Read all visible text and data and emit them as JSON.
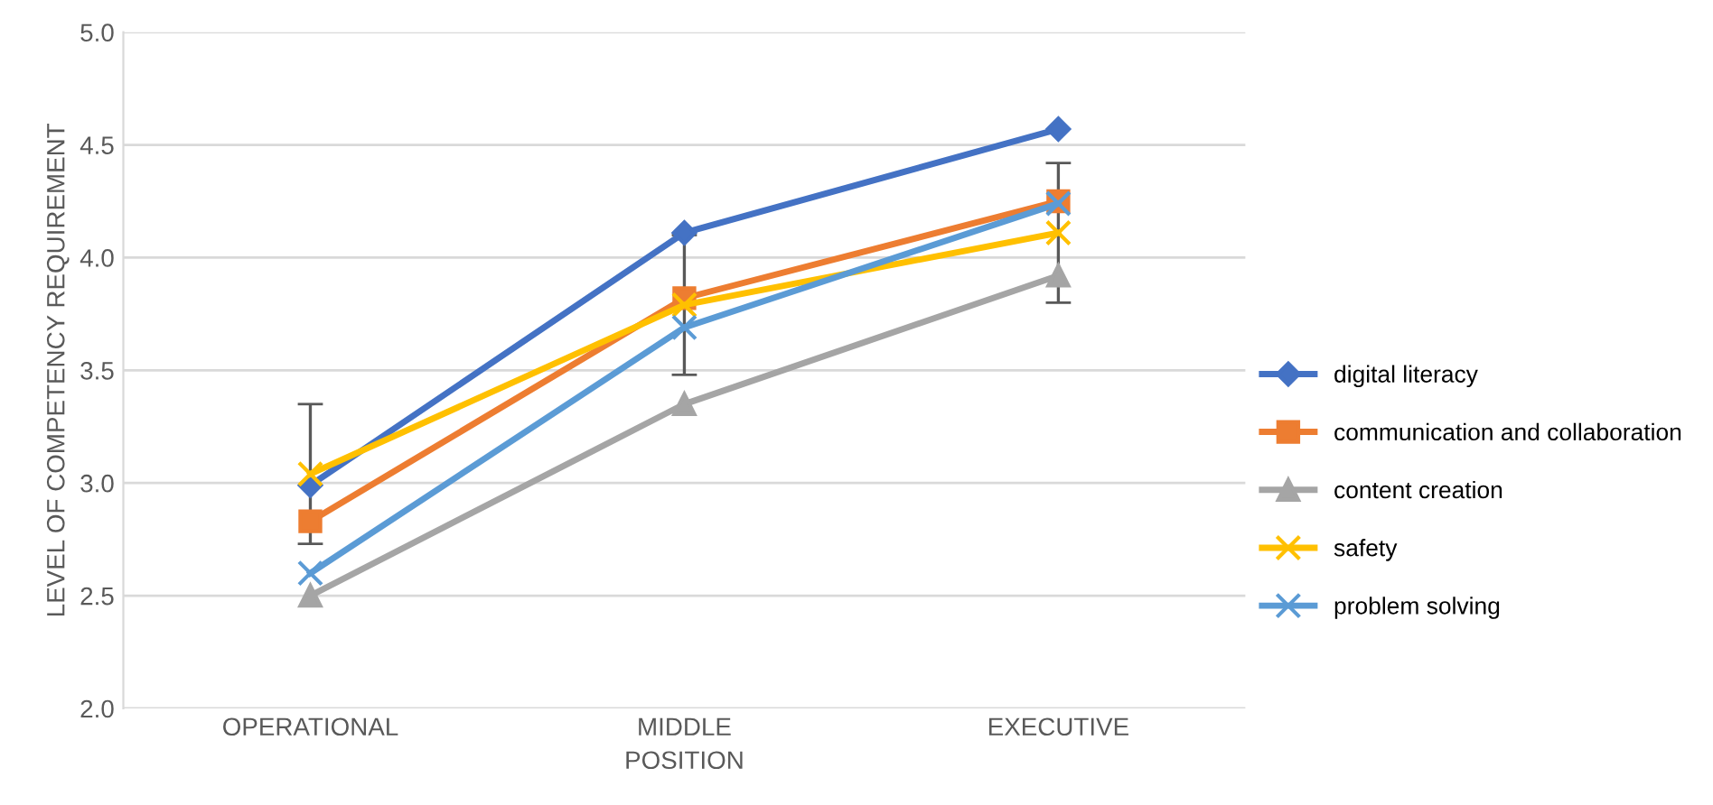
{
  "chart_data": {
    "type": "line",
    "xlabel": "POSITION",
    "ylabel": "LEVEL OF COMPETENCY REQUIREMENT",
    "categories": [
      "OPERATIONAL",
      "MIDDLE",
      "EXECUTIVE"
    ],
    "series": [
      {
        "name": "digital literacy",
        "color": "#4472c4",
        "marker": "diamond",
        "values": [
          2.99,
          4.11,
          4.57
        ]
      },
      {
        "name": "communication and collaboration",
        "color": "#ed7d31",
        "marker": "square",
        "values": [
          2.83,
          3.82,
          4.25
        ]
      },
      {
        "name": "content creation",
        "color": "#a5a5a5",
        "marker": "triangle",
        "values": [
          2.5,
          3.35,
          3.92
        ]
      },
      {
        "name": "safety",
        "color": "#ffc000",
        "marker": "cross",
        "values": [
          3.04,
          3.79,
          4.11
        ],
        "errors": [
          0.31,
          0.31,
          0.31
        ]
      },
      {
        "name": "problem solving",
        "color": "#5b9bd5",
        "marker": "cross",
        "values": [
          2.6,
          3.69,
          4.24
        ]
      }
    ],
    "ylim": [
      2.0,
      5.0
    ],
    "yticks": [
      {
        "value": 2.0,
        "label": "2.0"
      },
      {
        "value": 2.5,
        "label": "2.5"
      },
      {
        "value": 3.0,
        "label": "3.0"
      },
      {
        "value": 3.5,
        "label": "3.5"
      },
      {
        "value": 4.0,
        "label": "4.0"
      },
      {
        "value": 4.5,
        "label": "4.5"
      },
      {
        "value": 5.0,
        "label": "5.0"
      }
    ],
    "grid": "y",
    "legend": "right"
  }
}
